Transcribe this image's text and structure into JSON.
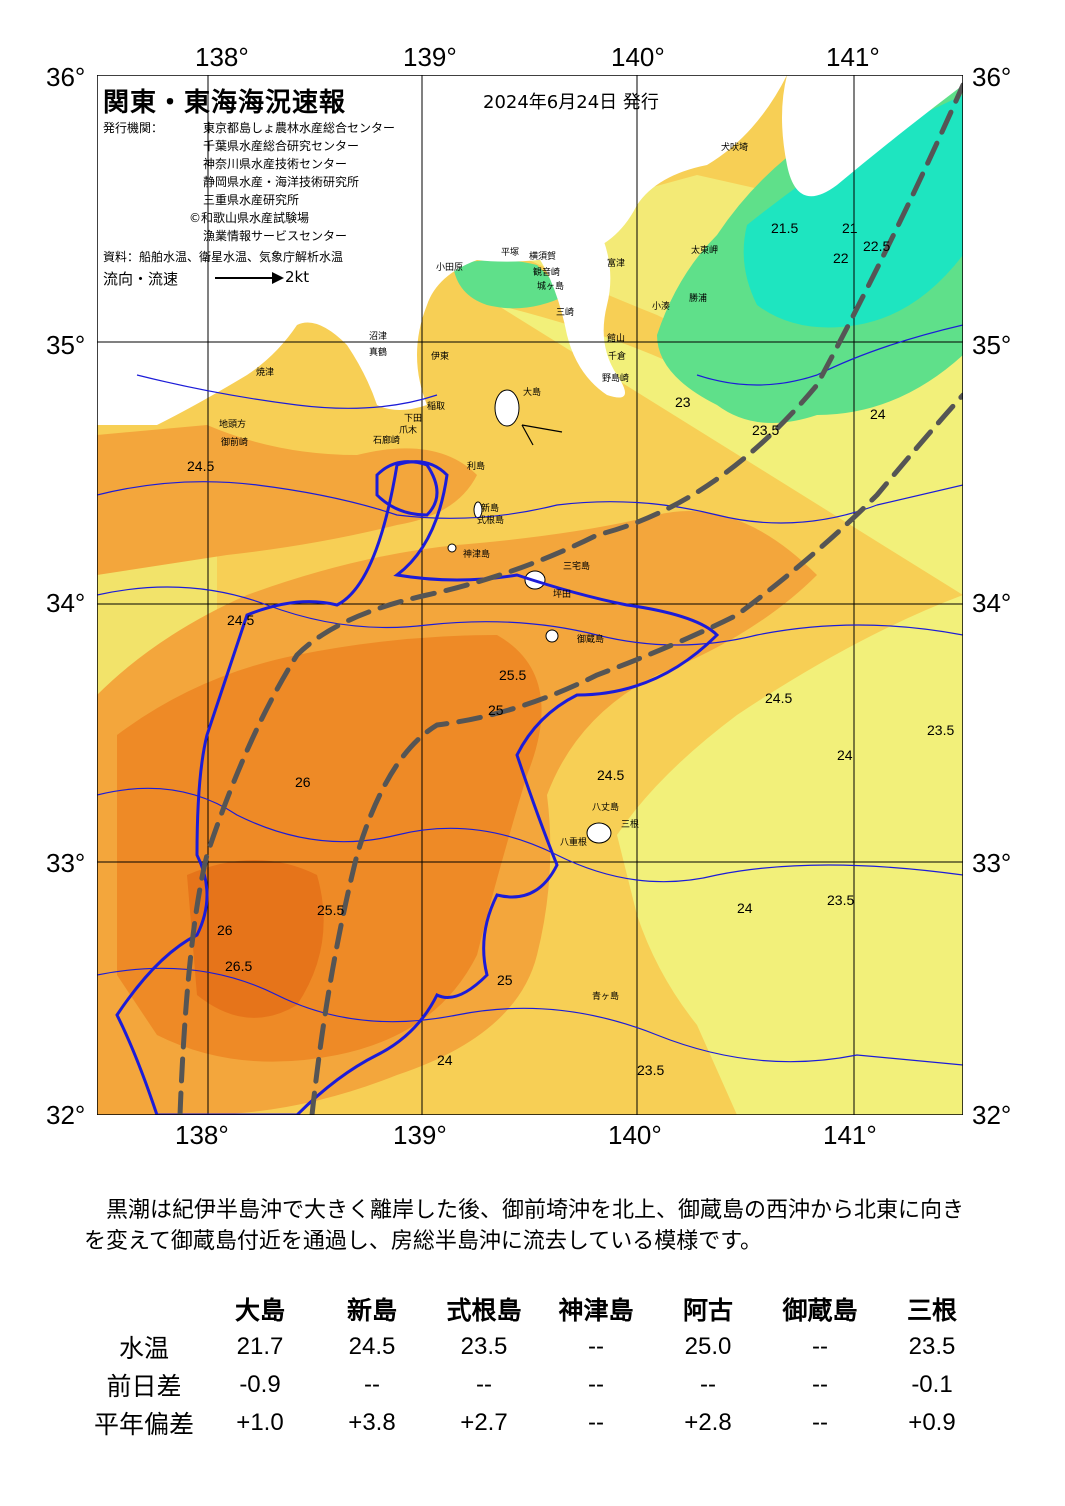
{
  "map": {
    "title": "関東・東海海況速報",
    "date": "2024年6月24日 発行",
    "issuer_label": "発行機関：",
    "issuers": [
      "東京都島しょ農林水産総合センター",
      "千葉県水産総合研究センター",
      "神奈川県水産技術センター",
      "静岡県水産・海洋技術研究所",
      "三重県水産研究所",
      "©和歌山県水産試験場",
      "漁業情報サービスセンター"
    ],
    "source": "資料：船舶水温、衛星水温、気象庁解析水温",
    "flow_label": "流向・流速",
    "flow_unit": "2kt",
    "lon_labels_top": [
      "138°",
      "139°",
      "140°",
      "141°"
    ],
    "lon_labels_bottom": [
      "138°",
      "139°",
      "140°",
      "141°"
    ],
    "lat_labels_left": [
      "36°",
      "35°",
      "34°",
      "33°",
      "32°"
    ],
    "lat_labels_right": [
      "36°",
      "35°",
      "34°",
      "33°",
      "32°"
    ],
    "places": [
      "犬吠埼",
      "太東岬",
      "勝浦",
      "小湊",
      "館山",
      "千倉",
      "野島崎",
      "富津",
      "横須賀",
      "観音崎",
      "城ヶ島",
      "三崎",
      "小田原",
      "平塚",
      "真鶴",
      "伊東",
      "稲取",
      "下田",
      "爪木",
      "石廊崎",
      "御前崎",
      "地頭方",
      "焼津",
      "沼津",
      "大島",
      "利島",
      "新島",
      "式根島",
      "神津島",
      "三宅島",
      "御蔵島",
      "坪田",
      "八丈島",
      "三根",
      "八重根",
      "青ヶ島"
    ],
    "isotherm_labels": [
      "21",
      "21.5",
      "22",
      "22.5",
      "23",
      "23.5",
      "24",
      "24.5",
      "25",
      "25.5",
      "26",
      "26.5"
    ],
    "colors": {
      "cold": "#1ee5c0",
      "cool": "#5fe08a",
      "mild": "#f2f07a",
      "warm": "#f7cf55",
      "hot": "#f3a63c",
      "hotter": "#ee8a26",
      "hottest": "#e6741a",
      "isotherm": "#1c1cd8",
      "kuroshio": "#555555",
      "land": "#ffffff"
    }
  },
  "description": "黒潮は紀伊半島沖で大きく離岸した後、御前埼沖を北上、御蔵島の西沖から北東に向きを変えて御蔵島付近を通過し、房総半島沖に流去している模様です。",
  "stats": {
    "columns": [
      "大島",
      "新島",
      "式根島",
      "神津島",
      "阿古",
      "御蔵島",
      "三根"
    ],
    "rows": [
      {
        "label": "水温",
        "values": [
          "21.7",
          "24.5",
          "23.5",
          "--",
          "25.0",
          "--",
          "23.5"
        ]
      },
      {
        "label": "前日差",
        "values": [
          "-0.9",
          "--",
          "--",
          "--",
          "--",
          "--",
          "-0.1"
        ]
      },
      {
        "label": "平年偏差",
        "values": [
          "+1.0",
          "+3.8",
          "+2.7",
          "--",
          "+2.8",
          "--",
          "+0.9"
        ]
      }
    ]
  }
}
